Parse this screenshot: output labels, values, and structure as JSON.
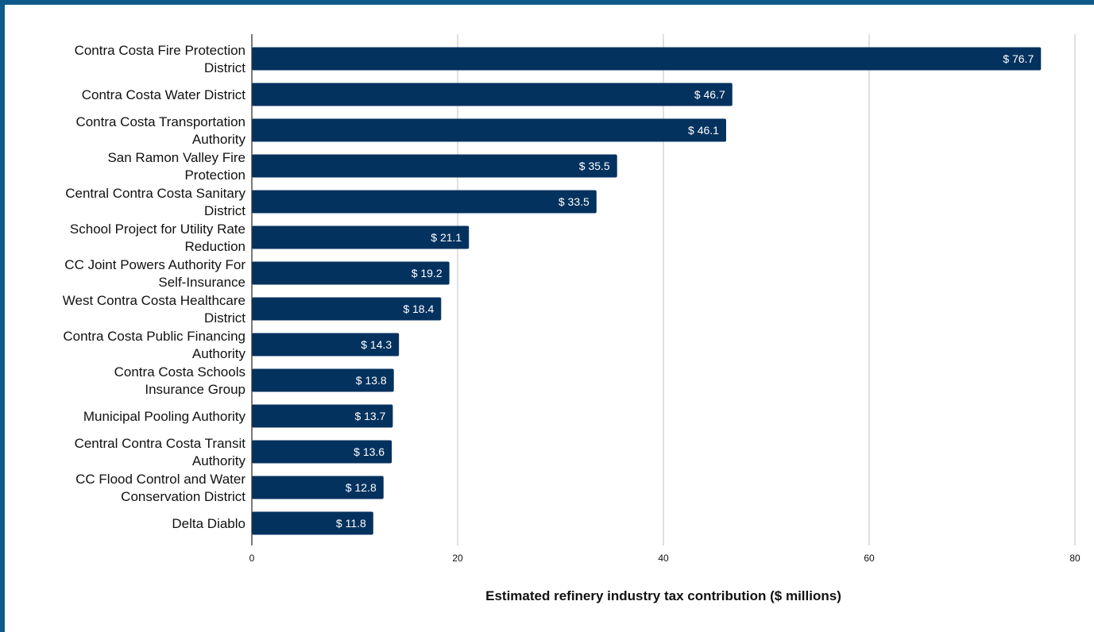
{
  "colors": {
    "bar": "#04325f",
    "frame_border": "#0d5a8a",
    "gridline": "#d0d0d0",
    "axis": "#333333",
    "bar_label": "#ffffff"
  },
  "chart_data": {
    "type": "bar",
    "orientation": "horizontal",
    "categories": [
      [
        "Contra Costa Fire Protection",
        "District"
      ],
      [
        "Contra Costa Water District"
      ],
      [
        "Contra Costa Transportation",
        "Authority"
      ],
      [
        "San Ramon Valley Fire",
        "Protection"
      ],
      [
        "Central Contra Costa Sanitary",
        "District"
      ],
      [
        "School Project for Utility Rate",
        "Reduction"
      ],
      [
        "CC Joint Powers Authority For",
        "Self-Insurance"
      ],
      [
        "West Contra Costa Healthcare",
        "District"
      ],
      [
        "Contra Costa Public Financing",
        "Authority"
      ],
      [
        "Contra Costa Schools",
        "Insurance Group"
      ],
      [
        "Municipal Pooling Authority"
      ],
      [
        "Central Contra Costa Transit",
        "Authority"
      ],
      [
        "CC Flood Control and Water",
        "Conservation District"
      ],
      [
        "Delta Diablo"
      ]
    ],
    "values": [
      76.7,
      46.7,
      46.1,
      35.5,
      33.5,
      21.1,
      19.2,
      18.4,
      14.3,
      13.8,
      13.7,
      13.6,
      12.8,
      11.8
    ],
    "value_labels": [
      "$ 76.7",
      "$ 46.7",
      "$ 46.1",
      "$ 35.5",
      "$ 33.5",
      "$ 21.1",
      "$ 19.2",
      "$ 18.4",
      "$ 14.3",
      "$ 13.8",
      "$ 13.7",
      "$ 13.6",
      "$ 12.8",
      "$ 11.8"
    ],
    "xlabel": "Estimated refinery industry tax contribution ($ millions)",
    "ylabel": "",
    "title": "",
    "xlim": [
      0,
      80
    ],
    "xticks": [
      0,
      20,
      40,
      60,
      80
    ],
    "grid": "vertical",
    "legend": "none"
  }
}
